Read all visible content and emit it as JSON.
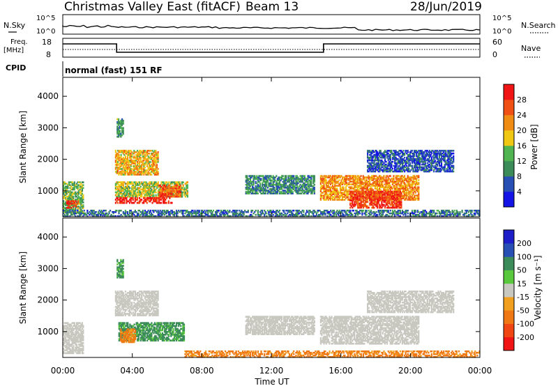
{
  "header": {
    "title": "Christmas Valley East (fitACF)",
    "beam": "Beam 13",
    "date": "28/Jun/2019"
  },
  "summary_panels": {
    "nsky_label": "N.Sky",
    "nsearch_label": "N.Search",
    "nsky_ticks": [
      "10^5",
      "10^0"
    ],
    "nsearch_ticks": [
      "10^5",
      "10^0"
    ],
    "freq_label_line1": "Freq.",
    "freq_label_line2": "[MHz]",
    "freq_ticks": [
      "18",
      "8"
    ],
    "nave_label": "Nave",
    "nave_ticks": [
      "60",
      "0"
    ],
    "cpid_label": "CPID",
    "cpid_text": "normal (fast) 151 RF"
  },
  "colors": {
    "power": [
      "#1414e6",
      "#2850b4",
      "#3c8c5a",
      "#50b450",
      "#f0c814",
      "#f08c14",
      "#f05014",
      "#f01414"
    ],
    "velocity": [
      "#1e1ec8",
      "#2850b4",
      "#3c8c5a",
      "#5ac83c",
      "#c8c8c0",
      "#f0a01e",
      "#f07814",
      "#f04614",
      "#f01414"
    ]
  },
  "chart_data": [
    {
      "type": "heatmap",
      "title": "",
      "xlabel": "",
      "ylabel": "Slant Range [km]",
      "xlim": [
        "00:00",
        "24:00"
      ],
      "ylim": [
        180,
        4600
      ],
      "yticks": [
        "1000",
        "2000",
        "3000",
        "4000"
      ],
      "colorbar": {
        "label": "Power [dB]",
        "ticks": [
          "4",
          "8",
          "12",
          "16",
          "20",
          "24",
          "28"
        ],
        "range": [
          0,
          32
        ]
      },
      "regions": [
        {
          "t_start": 0.0,
          "t_end": 1.2,
          "r_start": 300,
          "r_end": 1300,
          "value": 14
        },
        {
          "t_start": 0.2,
          "t_end": 0.9,
          "r_start": 450,
          "r_end": 700,
          "value": 28
        },
        {
          "t_start": 3.0,
          "t_end": 5.5,
          "r_start": 1500,
          "r_end": 2300,
          "value": 20
        },
        {
          "t_start": 3.0,
          "t_end": 7.2,
          "r_start": 800,
          "r_end": 1300,
          "value": 16
        },
        {
          "t_start": 3.0,
          "t_end": 6.3,
          "r_start": 600,
          "r_end": 800,
          "value": 30
        },
        {
          "t_start": 5.5,
          "t_end": 6.8,
          "r_start": 800,
          "r_end": 1200,
          "value": 26
        },
        {
          "t_start": 3.1,
          "t_end": 3.5,
          "r_start": 2700,
          "r_end": 3300,
          "value": 12
        },
        {
          "t_start": 10.5,
          "t_end": 14.5,
          "r_start": 900,
          "r_end": 1500,
          "value": 10
        },
        {
          "t_start": 14.8,
          "t_end": 20.5,
          "r_start": 700,
          "r_end": 1500,
          "value": 22
        },
        {
          "t_start": 16.5,
          "t_end": 19.5,
          "r_start": 450,
          "r_end": 1000,
          "value": 28
        },
        {
          "t_start": 17.5,
          "t_end": 22.5,
          "r_start": 1600,
          "r_end": 2300,
          "value": 6
        },
        {
          "t_start": 0.0,
          "t_end": 24.0,
          "r_start": 180,
          "r_end": 400,
          "value": 8
        }
      ]
    },
    {
      "type": "heatmap",
      "title": "",
      "xlabel": "Time UT",
      "ylabel": "Slant Range [km]",
      "xlim": [
        "00:00",
        "24:00"
      ],
      "ylim": [
        180,
        4600
      ],
      "xticks": [
        "00:00",
        "04:00",
        "08:00",
        "12:00",
        "16:00",
        "20:00",
        "00:00"
      ],
      "yticks": [
        "1000",
        "2000",
        "3000",
        "4000"
      ],
      "colorbar": {
        "label": "Velocity [m s⁻¹]",
        "ticks": [
          "200",
          "100",
          "50",
          "15",
          "-15",
          "-50",
          "-100",
          "-200"
        ],
        "range": [
          -250,
          250
        ]
      },
      "regions": [
        {
          "t_start": 0.0,
          "t_end": 1.2,
          "r_start": 300,
          "r_end": 1300,
          "value": 0
        },
        {
          "t_start": 3.0,
          "t_end": 5.5,
          "r_start": 1500,
          "r_end": 2300,
          "value": 0
        },
        {
          "t_start": 3.2,
          "t_end": 7.0,
          "r_start": 700,
          "r_end": 1300,
          "value": 40
        },
        {
          "t_start": 3.3,
          "t_end": 4.2,
          "r_start": 650,
          "r_end": 1100,
          "value": -40
        },
        {
          "t_start": 3.1,
          "t_end": 3.5,
          "r_start": 2700,
          "r_end": 3300,
          "value": 40
        },
        {
          "t_start": 10.5,
          "t_end": 14.5,
          "r_start": 900,
          "r_end": 1500,
          "value": 0
        },
        {
          "t_start": 14.8,
          "t_end": 20.5,
          "r_start": 600,
          "r_end": 1500,
          "value": 0
        },
        {
          "t_start": 17.5,
          "t_end": 22.5,
          "r_start": 1600,
          "r_end": 2300,
          "value": 0
        },
        {
          "t_start": 7.0,
          "t_end": 24.0,
          "r_start": 180,
          "r_end": 400,
          "value": -40
        }
      ]
    }
  ]
}
